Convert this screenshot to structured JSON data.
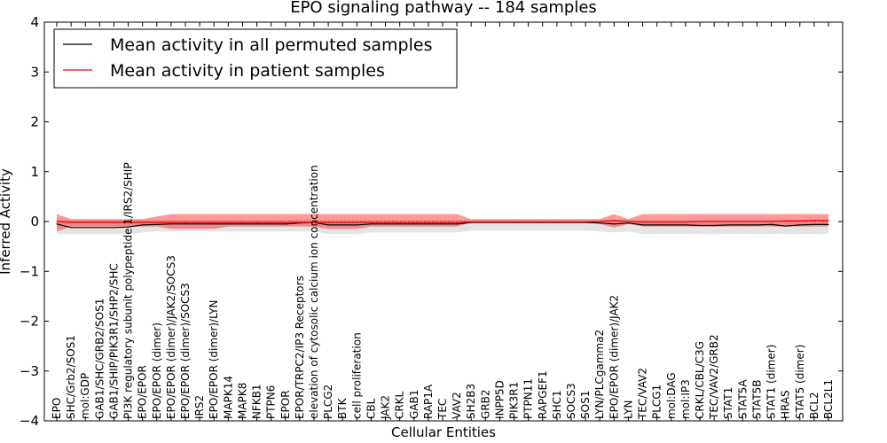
{
  "chart_data": {
    "type": "line",
    "title": "EPO signaling pathway -- 184 samples",
    "xlabel": "Cellular Entities",
    "ylabel": "Inferred Activity",
    "ylim": [
      -4,
      4
    ],
    "yticks": [
      -4,
      -3,
      -2,
      -1,
      0,
      1,
      2,
      3,
      4
    ],
    "ytick_labels": [
      "−4",
      "−3",
      "−2",
      "−1",
      "0",
      "1",
      "2",
      "3",
      "4"
    ],
    "legend_position": "top-left",
    "categories": [
      "EPO",
      "SHC/Grb2/SOS1",
      "mol:GDP",
      "GAB1/SHC/GRB2/SOS1",
      "GAB1/SHIP/PIK3R1/SHP2/SHC",
      "PI3K regulatory subunit polypeptide 1/IRS2/SHIP",
      "EPO/EPOR",
      "EPO/EPOR (dimer)",
      "EPO/EPOR (dimer)/JAK2/SOCS3",
      "EPO/EPOR (dimer)/SOCS3",
      "IRS2",
      "EPO/EPOR (dimer)/LYN",
      "MAPK14",
      "MAPK8",
      "NFKB1",
      "PTPN6",
      "EPOR",
      "EPOR/TRPC2/IP3 Receptors",
      "elevation of cytosolic calcium ion concentration",
      "PLCG2",
      "BTK",
      "cell proliferation",
      "CBL",
      "JAK2",
      "CRKL",
      "GAB1",
      "RAP1A",
      "TEC",
      "VAV2",
      "SH2B3",
      "GRB2",
      "INPP5D",
      "PIK3R1",
      "PTPN11",
      "RAPGEF1",
      "SHC1",
      "SOCS3",
      "SOS1",
      "LYN/PLCgamma2",
      "EPO/EPOR (dimer)/JAK2",
      "LYN",
      "TEC/VAV2",
      "PLCG1",
      "mol:DAG",
      "mol:IP3",
      "CRKL/CBL/C3G",
      "TEC/VAV2/GRB2",
      "STAT1",
      "STAT5A",
      "STAT5B",
      "STAT1 (dimer)",
      "HRAS",
      "STAT5 (dimer)",
      "BCL2",
      "BCL2L1"
    ],
    "series": [
      {
        "name": "Mean activity in all permuted samples",
        "color": "#000000",
        "values": [
          -0.05,
          -0.12,
          -0.12,
          -0.12,
          -0.12,
          -0.11,
          -0.07,
          -0.06,
          -0.05,
          -0.05,
          -0.05,
          -0.05,
          -0.05,
          -0.05,
          -0.05,
          -0.05,
          -0.05,
          -0.03,
          -0.02,
          -0.07,
          -0.07,
          -0.07,
          -0.05,
          -0.05,
          -0.05,
          -0.05,
          -0.05,
          -0.05,
          -0.05,
          -0.02,
          -0.02,
          -0.02,
          -0.02,
          -0.02,
          -0.02,
          -0.02,
          -0.02,
          -0.02,
          -0.03,
          -0.05,
          -0.03,
          -0.07,
          -0.07,
          -0.07,
          -0.07,
          -0.08,
          -0.08,
          -0.07,
          -0.07,
          -0.07,
          -0.06,
          -0.09,
          -0.07,
          -0.06,
          -0.06
        ],
        "band_upper": [
          0.05,
          0.03,
          0.03,
          0.03,
          0.03,
          0.03,
          0.03,
          0.03,
          0.03,
          0.03,
          0.03,
          0.03,
          0.03,
          0.03,
          0.03,
          0.03,
          0.03,
          0.03,
          0.03,
          0.03,
          0.03,
          0.03,
          0.03,
          0.03,
          0.03,
          0.03,
          0.03,
          0.03,
          0.03,
          0.03,
          0.03,
          0.03,
          0.03,
          0.03,
          0.03,
          0.03,
          0.03,
          0.03,
          0.03,
          0.03,
          0.03,
          0.03,
          0.03,
          0.03,
          0.03,
          0.03,
          0.03,
          0.03,
          0.03,
          0.03,
          0.03,
          0.03,
          0.03,
          0.03,
          0.03
        ],
        "band_lower": [
          -0.25,
          -0.25,
          -0.25,
          -0.25,
          -0.25,
          -0.25,
          -0.22,
          -0.2,
          -0.2,
          -0.2,
          -0.2,
          -0.2,
          -0.2,
          -0.2,
          -0.2,
          -0.2,
          -0.2,
          -0.2,
          -0.2,
          -0.25,
          -0.25,
          -0.25,
          -0.22,
          -0.22,
          -0.22,
          -0.22,
          -0.22,
          -0.22,
          -0.22,
          -0.18,
          -0.18,
          -0.18,
          -0.18,
          -0.18,
          -0.18,
          -0.18,
          -0.18,
          -0.18,
          -0.2,
          -0.22,
          -0.2,
          -0.25,
          -0.25,
          -0.25,
          -0.25,
          -0.25,
          -0.25,
          -0.25,
          -0.25,
          -0.25,
          -0.25,
          -0.25,
          -0.25,
          -0.25,
          -0.25
        ]
      },
      {
        "name": "Mean activity in patient samples",
        "color": "#ff0000",
        "values": [
          0.0,
          -0.02,
          -0.02,
          -0.02,
          -0.02,
          -0.02,
          -0.02,
          -0.02,
          -0.02,
          -0.02,
          -0.02,
          -0.02,
          -0.02,
          -0.02,
          -0.02,
          -0.02,
          -0.02,
          -0.02,
          -0.02,
          -0.02,
          -0.02,
          -0.02,
          -0.02,
          -0.02,
          -0.02,
          -0.02,
          -0.02,
          -0.02,
          -0.02,
          -0.01,
          -0.01,
          -0.01,
          -0.01,
          -0.01,
          -0.01,
          -0.01,
          -0.01,
          -0.01,
          0.0,
          0.02,
          0.0,
          -0.01,
          -0.01,
          -0.01,
          -0.01,
          0.0,
          0.0,
          0.0,
          0.0,
          0.0,
          0.0,
          0.01,
          0.01,
          0.02,
          0.02
        ],
        "band_upper": [
          0.15,
          0.05,
          0.05,
          0.05,
          0.05,
          0.05,
          0.05,
          0.1,
          0.15,
          0.15,
          0.15,
          0.15,
          0.15,
          0.15,
          0.15,
          0.15,
          0.15,
          0.15,
          0.15,
          0.15,
          0.15,
          0.15,
          0.15,
          0.15,
          0.15,
          0.15,
          0.15,
          0.15,
          0.15,
          0.05,
          0.05,
          0.05,
          0.05,
          0.05,
          0.05,
          0.05,
          0.05,
          0.05,
          0.05,
          0.15,
          0.05,
          0.15,
          0.15,
          0.15,
          0.15,
          0.15,
          0.15,
          0.15,
          0.15,
          0.15,
          0.15,
          0.15,
          0.15,
          0.15,
          0.15
        ],
        "band_lower": [
          -0.2,
          -0.1,
          -0.1,
          -0.1,
          -0.1,
          -0.1,
          -0.1,
          -0.1,
          -0.15,
          -0.15,
          -0.15,
          -0.15,
          -0.1,
          -0.1,
          -0.1,
          -0.1,
          -0.1,
          -0.1,
          -0.1,
          -0.15,
          -0.15,
          -0.15,
          -0.1,
          -0.1,
          -0.1,
          -0.1,
          -0.1,
          -0.1,
          -0.1,
          -0.02,
          -0.02,
          -0.02,
          -0.02,
          -0.02,
          -0.02,
          -0.02,
          -0.02,
          -0.02,
          -0.05,
          -0.12,
          -0.05,
          -0.1,
          -0.1,
          -0.1,
          -0.1,
          -0.1,
          -0.1,
          -0.1,
          -0.1,
          -0.1,
          -0.1,
          -0.1,
          -0.1,
          -0.1,
          -0.1
        ]
      }
    ]
  }
}
